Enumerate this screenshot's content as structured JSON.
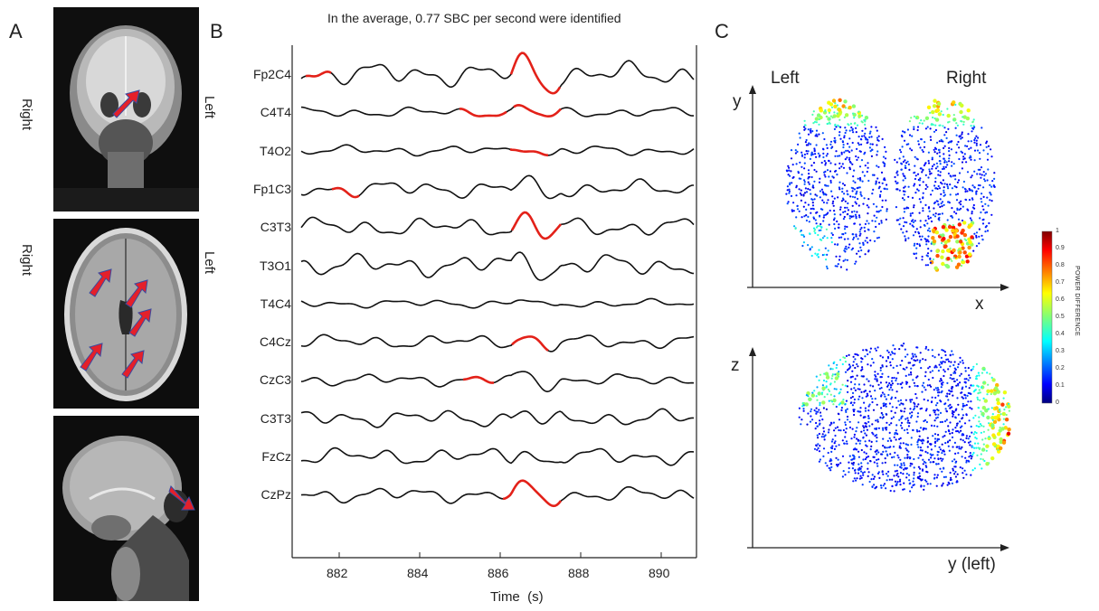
{
  "panel_labels": {
    "a": "A",
    "b": "B",
    "c": "C"
  },
  "mri": {
    "orientation_right": "Right",
    "orientation_left": "Left"
  },
  "eeg": {
    "title": "In the average, 0.77 SBC per second were identified",
    "xlabel": "Time  (s)",
    "ticks": [
      "882",
      "884",
      "886",
      "888",
      "890"
    ],
    "channels": [
      "Fp2C4",
      "C4T4",
      "T4O2",
      "Fp1C3",
      "C3T3",
      "T3O1",
      "T4C4",
      "C4Cz",
      "CzC3",
      "C3T3",
      "FzCz",
      "CzPz"
    ]
  },
  "maps": {
    "top_left": "Left",
    "top_right": "Right",
    "top_y": "y",
    "top_x": "x",
    "bottom_z": "z",
    "bottom_y": "y (left)"
  },
  "colorbar": {
    "title": "POWER DIFFERENCE",
    "ticks": [
      "1",
      "0.9",
      "0.8",
      "0.7",
      "0.6",
      "0.5",
      "0.4",
      "0.3",
      "0.2",
      "0.1",
      "0"
    ]
  },
  "colors": {
    "trace": "#111111",
    "highlight": "#e32119",
    "arrow": "#e4202a"
  }
}
